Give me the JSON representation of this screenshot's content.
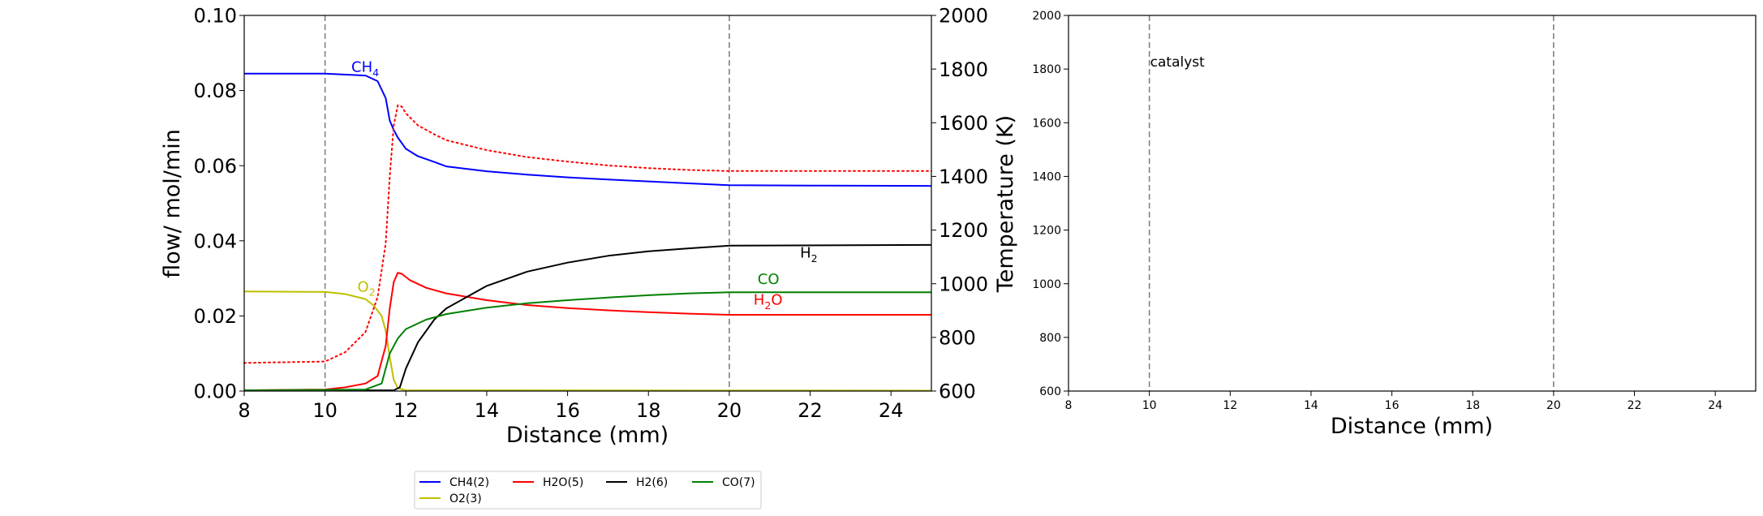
{
  "chart_data": [
    {
      "type": "line",
      "panel": "left",
      "xlabel": "Distance (mm)",
      "ylabel": "flow/ mol/min",
      "y2label": "Temperature (K)",
      "xlim": [
        8,
        25
      ],
      "ylim": [
        0,
        0.1
      ],
      "y2lim": [
        600,
        2000
      ],
      "xticks": [
        "8",
        "10",
        "12",
        "14",
        "16",
        "18",
        "20",
        "22",
        "24"
      ],
      "yticks": [
        "0.00",
        "0.02",
        "0.04",
        "0.06",
        "0.08",
        "0.10"
      ],
      "y2ticks": [
        "600",
        "800",
        "1000",
        "1200",
        "1400",
        "1600",
        "1800",
        "2000"
      ],
      "catalyst_bounds": [
        10,
        20
      ],
      "grid": false,
      "series": [
        {
          "name": "CH4(2)",
          "color": "#0000ff",
          "style": "solid",
          "x": [
            8,
            10,
            11,
            11.3,
            11.5,
            11.6,
            11.7,
            11.8,
            12,
            12.3,
            12.7,
            13,
            14,
            15,
            16,
            17,
            18,
            19,
            20,
            22,
            25
          ],
          "y": [
            0.0845,
            0.0845,
            0.084,
            0.0825,
            0.078,
            0.072,
            0.0695,
            0.0675,
            0.0645,
            0.0625,
            0.061,
            0.0598,
            0.0585,
            0.0576,
            0.0569,
            0.0563,
            0.0558,
            0.0553,
            0.0548,
            0.0547,
            0.0546
          ]
        },
        {
          "name": "O2(3)",
          "color": "#bfbf00",
          "style": "solid",
          "x": [
            8,
            10,
            10.5,
            11,
            11.2,
            11.4,
            11.5,
            11.6,
            11.7,
            11.8,
            12,
            25
          ],
          "y": [
            0.0265,
            0.0264,
            0.0258,
            0.0245,
            0.0228,
            0.02,
            0.016,
            0.009,
            0.003,
            0.0008,
            0.0002,
            0.0001
          ]
        },
        {
          "name": "H2O(5)",
          "color": "#ff0000",
          "style": "solid",
          "x": [
            8,
            10,
            10.5,
            11,
            11.3,
            11.5,
            11.6,
            11.7,
            11.8,
            11.9,
            12.1,
            12.5,
            13,
            14,
            15,
            16,
            17,
            18,
            19,
            20,
            25
          ],
          "y": [
            0.0002,
            0.0004,
            0.001,
            0.002,
            0.004,
            0.012,
            0.022,
            0.029,
            0.0315,
            0.0312,
            0.0295,
            0.0275,
            0.026,
            0.0242,
            0.0229,
            0.0221,
            0.0215,
            0.021,
            0.0206,
            0.0203,
            0.0203
          ]
        },
        {
          "name": "H2(6)",
          "color": "#000000",
          "style": "solid",
          "x": [
            8,
            11.7,
            11.85,
            12,
            12.3,
            12.7,
            13,
            14,
            15,
            16,
            17,
            18,
            19,
            20,
            25
          ],
          "y": [
            0.0002,
            0.0002,
            0.001,
            0.006,
            0.013,
            0.019,
            0.022,
            0.028,
            0.0318,
            0.0342,
            0.036,
            0.0372,
            0.038,
            0.0387,
            0.0389
          ]
        },
        {
          "name": "CO(7)",
          "color": "#008000",
          "style": "solid",
          "x": [
            8,
            11,
            11.4,
            11.6,
            11.8,
            12,
            12.5,
            13,
            14,
            15,
            16,
            17,
            18,
            19,
            20,
            25
          ],
          "y": [
            0.0002,
            0.0004,
            0.002,
            0.01,
            0.014,
            0.0165,
            0.019,
            0.0205,
            0.0222,
            0.0234,
            0.0242,
            0.0249,
            0.0255,
            0.026,
            0.0263,
            0.0263
          ]
        },
        {
          "name": "",
          "axis": "y2",
          "color": "#ff0000",
          "style": "dotted",
          "x": [
            8,
            10,
            10.5,
            11,
            11.3,
            11.5,
            11.6,
            11.7,
            11.8,
            11.9,
            12,
            12.3,
            12.7,
            13,
            14,
            15,
            16,
            17,
            18,
            19,
            20,
            25
          ],
          "y": [
            705,
            710,
            745,
            820,
            950,
            1150,
            1400,
            1590,
            1665,
            1660,
            1635,
            1590,
            1557,
            1535,
            1498,
            1472,
            1455,
            1441,
            1431,
            1424,
            1420,
            1420
          ]
        }
      ],
      "annotations": [
        {
          "text": "CH",
          "sub": "4",
          "color": "#0000ff",
          "x": 10.65,
          "y": 0.085
        },
        {
          "text": "O",
          "sub": "2",
          "color": "#bfbf00",
          "x": 10.8,
          "y": 0.0265
        },
        {
          "text": "H",
          "sub": "2",
          "color": "#000000",
          "x": 21.75,
          "y": 0.0355
        },
        {
          "text": "CO",
          "color": "#008000",
          "x": 20.7,
          "y": 0.0285
        },
        {
          "text": "H",
          "sub": "2",
          "text2": "O",
          "color": "#ff0000",
          "x": 20.6,
          "y": 0.023
        }
      ]
    },
    {
      "type": "line",
      "panel": "right",
      "xlabel": "Distance (mm)",
      "xlim": [
        8,
        25
      ],
      "ylim": [
        600,
        2000
      ],
      "xticks": [
        "8",
        "10",
        "12",
        "14",
        "16",
        "18",
        "20",
        "22",
        "24"
      ],
      "yticks": [
        "600",
        "800",
        "1000",
        "1200",
        "1400",
        "1600",
        "1800",
        "2000"
      ],
      "catalyst_bounds": [
        10,
        20
      ],
      "series": [],
      "annotations": [
        {
          "text": "catalyst",
          "color": "#000000",
          "x": 10,
          "y": 1810
        }
      ]
    }
  ],
  "legend": {
    "placement": "bottom-left",
    "entries": [
      {
        "label": "CH4(2)",
        "color": "#0000ff"
      },
      {
        "label": "H2O(5)",
        "color": "#ff0000"
      },
      {
        "label": "H2(6)",
        "color": "#000000"
      },
      {
        "label": "CO(7)",
        "color": "#008000"
      },
      {
        "label": "O2(3)",
        "color": "#bfbf00"
      }
    ]
  }
}
